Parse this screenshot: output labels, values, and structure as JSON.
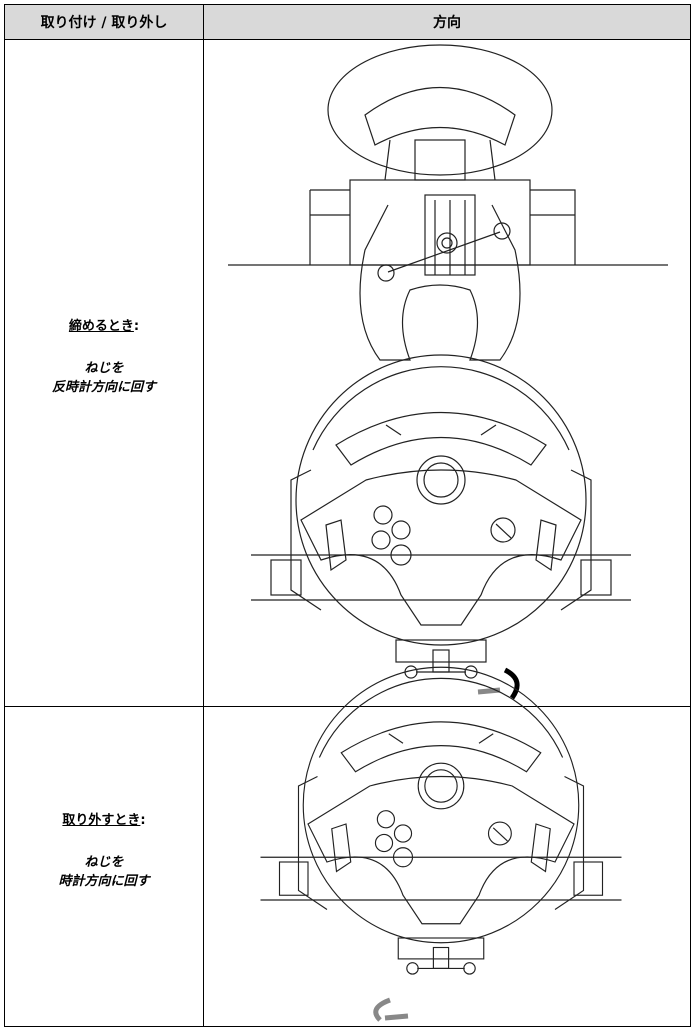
{
  "header": {
    "columns": [
      "取り付け / 取り外し",
      "方向"
    ]
  },
  "rows": [
    {
      "label": "締めるとき",
      "label_suffix": ":",
      "line1": "ねじを",
      "line2": "反時計方向に回す"
    },
    {
      "label": "取り外すとき",
      "label_suffix": ":",
      "line1": "ねじを",
      "line2": "時計方向に回す"
    }
  ]
}
